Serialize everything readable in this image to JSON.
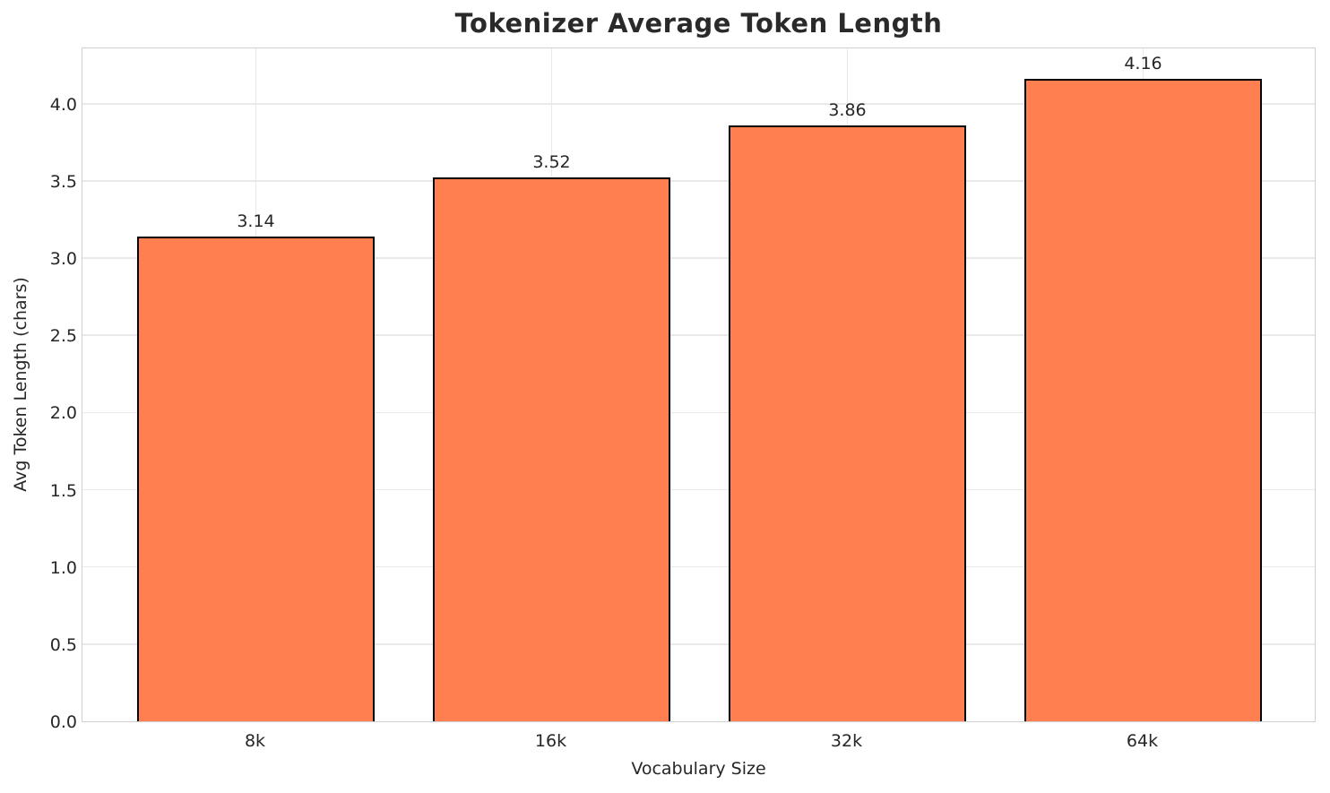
{
  "chart_data": {
    "type": "bar",
    "title": "Tokenizer Average Token Length",
    "xlabel": "Vocabulary Size",
    "ylabel": "Avg Token Length (chars)",
    "categories": [
      "8k",
      "16k",
      "32k",
      "64k"
    ],
    "values": [
      3.14,
      3.52,
      3.86,
      4.16
    ],
    "value_labels": [
      "3.14",
      "3.52",
      "3.86",
      "4.16"
    ],
    "ylim": [
      0,
      4.37
    ],
    "yticks": [
      0.0,
      0.5,
      1.0,
      1.5,
      2.0,
      2.5,
      3.0,
      3.5,
      4.0
    ],
    "ytick_labels": [
      "0.0",
      "0.5",
      "1.0",
      "1.5",
      "2.0",
      "2.5",
      "3.0",
      "3.5",
      "4.0"
    ],
    "grid": true,
    "legend_position": "none",
    "bar_color": "#FF7F50",
    "bar_edge_color": "#000000",
    "grid_color": "#e9e9e9",
    "spine_color": "#d0d0d0",
    "text_color": "#262626"
  }
}
